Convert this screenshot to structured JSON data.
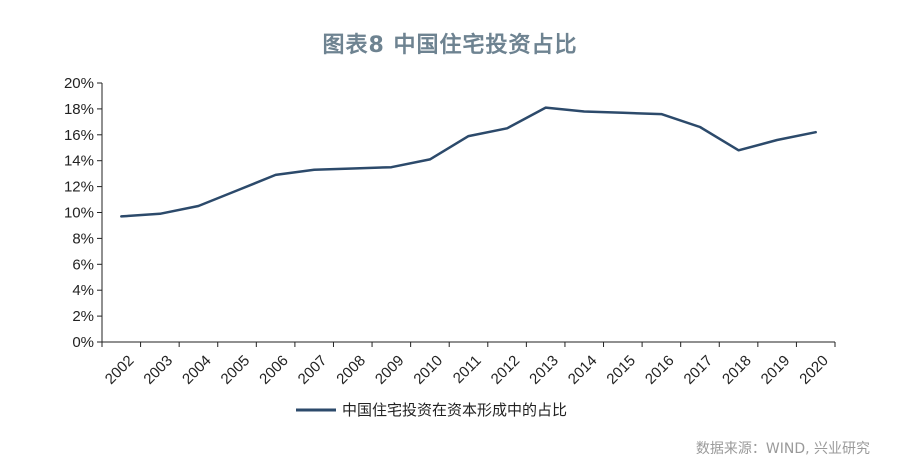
{
  "title": "图表8  中国住宅投资占比",
  "source": "数据来源：WIND, 兴业研究",
  "colors": {
    "title": "#6e8391",
    "line": "#2c4a6b",
    "axis": "#222222",
    "source": "#9a9a9a"
  },
  "chart_data": {
    "type": "line",
    "title": "图表8  中国住宅投资占比",
    "xlabel": "",
    "ylabel": "",
    "ylim": [
      0,
      20
    ],
    "yticks": [
      "0%",
      "2%",
      "4%",
      "6%",
      "8%",
      "10%",
      "12%",
      "14%",
      "16%",
      "18%",
      "20%"
    ],
    "categories": [
      "2002",
      "2003",
      "2004",
      "2005",
      "2006",
      "2007",
      "2008",
      "2009",
      "2010",
      "2011",
      "2012",
      "2013",
      "2014",
      "2015",
      "2016",
      "2017",
      "2018",
      "2019",
      "2020"
    ],
    "grid": false,
    "legend_position": "bottom",
    "series": [
      {
        "name": "中国住宅投资在资本形成中的占比",
        "values": [
          9.7,
          9.9,
          10.5,
          11.7,
          12.9,
          13.3,
          13.4,
          13.5,
          14.1,
          15.9,
          16.5,
          18.1,
          17.8,
          17.7,
          17.6,
          16.6,
          14.8,
          15.6,
          16.2
        ]
      }
    ]
  }
}
